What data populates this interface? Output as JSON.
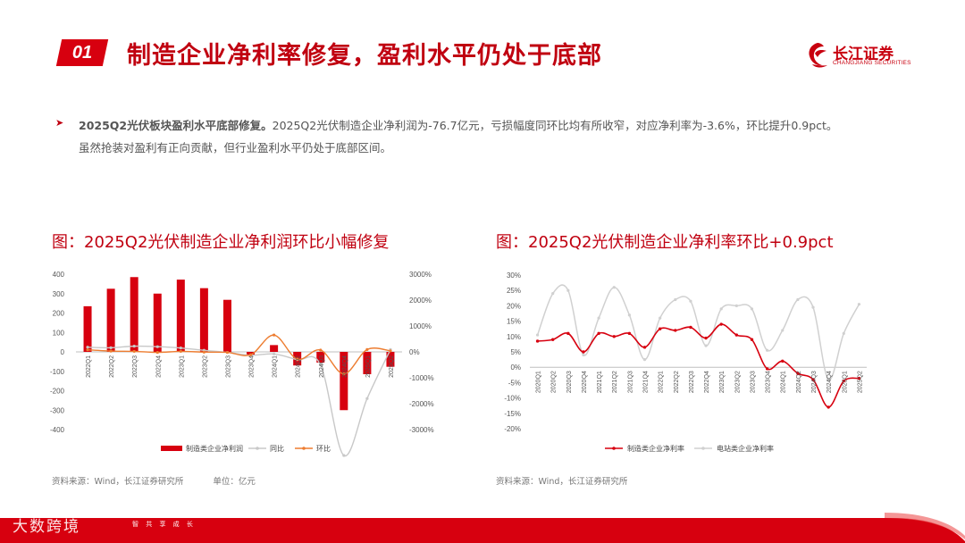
{
  "header": {
    "number": "01",
    "title": "制造企业净利率修复，盈利水平仍处于底部",
    "logo_cn": "长江证券",
    "logo_en": "CHANGJIANG SECURITIES"
  },
  "summary": {
    "bold": "2025Q2光伏板块盈利水平底部修复。",
    "text": "2025Q2光伏制造企业净利润为-76.7亿元，亏损幅度同环比均有所收窄，对应净利率为-3.6%，环比提升0.9pct。虽然抢装对盈利有正向贡献，但行业盈利水平仍处于底部区间。"
  },
  "chart_left": {
    "title": "图：2025Q2光伏制造企业净利润环比小幅修复",
    "source": "资料来源：Wind，长江证券研究所",
    "unit": "单位：亿元"
  },
  "chart_right": {
    "title": "图：2025Q2光伏制造企业净利率环比+0.9pct",
    "source": "资料来源：Wind，长江证券研究所"
  },
  "footer": {
    "watermark": "大数跨境",
    "slogan": "智  共 享 成 长"
  },
  "colors": {
    "brand_red": "#d7000f",
    "grey_line": "#c8c8c8",
    "orange_line": "#ed7d31"
  },
  "chart_data": [
    {
      "type": "bar",
      "categories": [
        "2022Q1",
        "2022Q2",
        "2022Q3",
        "2022Q4",
        "2023Q1",
        "2023Q2",
        "2023Q3",
        "2023Q4",
        "2024Q1",
        "2024Q2",
        "2024Q3",
        "2024Q4",
        "2025Q1",
        "2025Q2"
      ],
      "series": [
        {
          "name": "制造类企业净利润",
          "kind": "bar",
          "axis": "left",
          "values": [
            235,
            325,
            385,
            300,
            372,
            328,
            268,
            -15,
            35,
            -70,
            -55,
            -300,
            -115,
            -76.7
          ]
        },
        {
          "name": "同比",
          "kind": "line",
          "axis": "right",
          "values": [
            180,
            160,
            220,
            200,
            150,
            60,
            -20,
            -130,
            -80,
            -300,
            -500,
            -4000,
            -1800,
            90
          ]
        },
        {
          "name": "环比",
          "kind": "line",
          "axis": "right",
          "values": [
            80,
            30,
            20,
            -20,
            20,
            -10,
            -20,
            -110,
            650,
            -280,
            70,
            -850,
            90,
            40
          ]
        }
      ],
      "ylim_left": [
        -400,
        400
      ],
      "yticks_left": [
        -400,
        -300,
        -200,
        -100,
        0,
        100,
        200,
        300,
        400
      ],
      "ylim_right": [
        -3000,
        3000
      ],
      "yticks_right": [
        "-3000%",
        "-2000%",
        "-1000%",
        "0%",
        "1000%",
        "2000%",
        "3000%"
      ],
      "legend": [
        "制造类企业净利润",
        "同比",
        "环比"
      ],
      "legend_position": "bottom"
    },
    {
      "type": "line",
      "categories": [
        "2020Q1",
        "2020Q2",
        "2020Q3",
        "2020Q4",
        "2021Q1",
        "2021Q2",
        "2021Q3",
        "2021Q4",
        "2022Q1",
        "2022Q2",
        "2022Q3",
        "2022Q4",
        "2023Q1",
        "2023Q2",
        "2023Q3",
        "2023Q4",
        "2024Q1",
        "2024Q2",
        "2024Q3",
        "2024Q4",
        "2025Q1",
        "2025Q2"
      ],
      "series": [
        {
          "name": "制造类企业净利率",
          "values": [
            8.5,
            9.0,
            11.0,
            5.0,
            11.0,
            10.0,
            11.0,
            6.5,
            12.5,
            12.0,
            13.0,
            9.5,
            14.0,
            10.5,
            9.0,
            -0.5,
            2.0,
            -2.0,
            -4.0,
            -13.0,
            -4.5,
            -3.6
          ]
        },
        {
          "name": "电站类企业净利率",
          "values": [
            10.5,
            24.0,
            25.0,
            4.0,
            16.0,
            26.0,
            17.0,
            2.5,
            16.0,
            22.0,
            21.5,
            7.0,
            19.0,
            20.0,
            19.0,
            5.5,
            12.0,
            22.0,
            19.5,
            -4.0,
            11.0,
            20.5
          ]
        }
      ],
      "ylim": [
        -20,
        30
      ],
      "yticks": [
        "-20%",
        "-15%",
        "-10%",
        "-5%",
        "0%",
        "5%",
        "10%",
        "15%",
        "20%",
        "25%",
        "30%"
      ],
      "legend": [
        "制造类企业净利率",
        "电站类企业净利率"
      ],
      "legend_position": "bottom"
    }
  ]
}
